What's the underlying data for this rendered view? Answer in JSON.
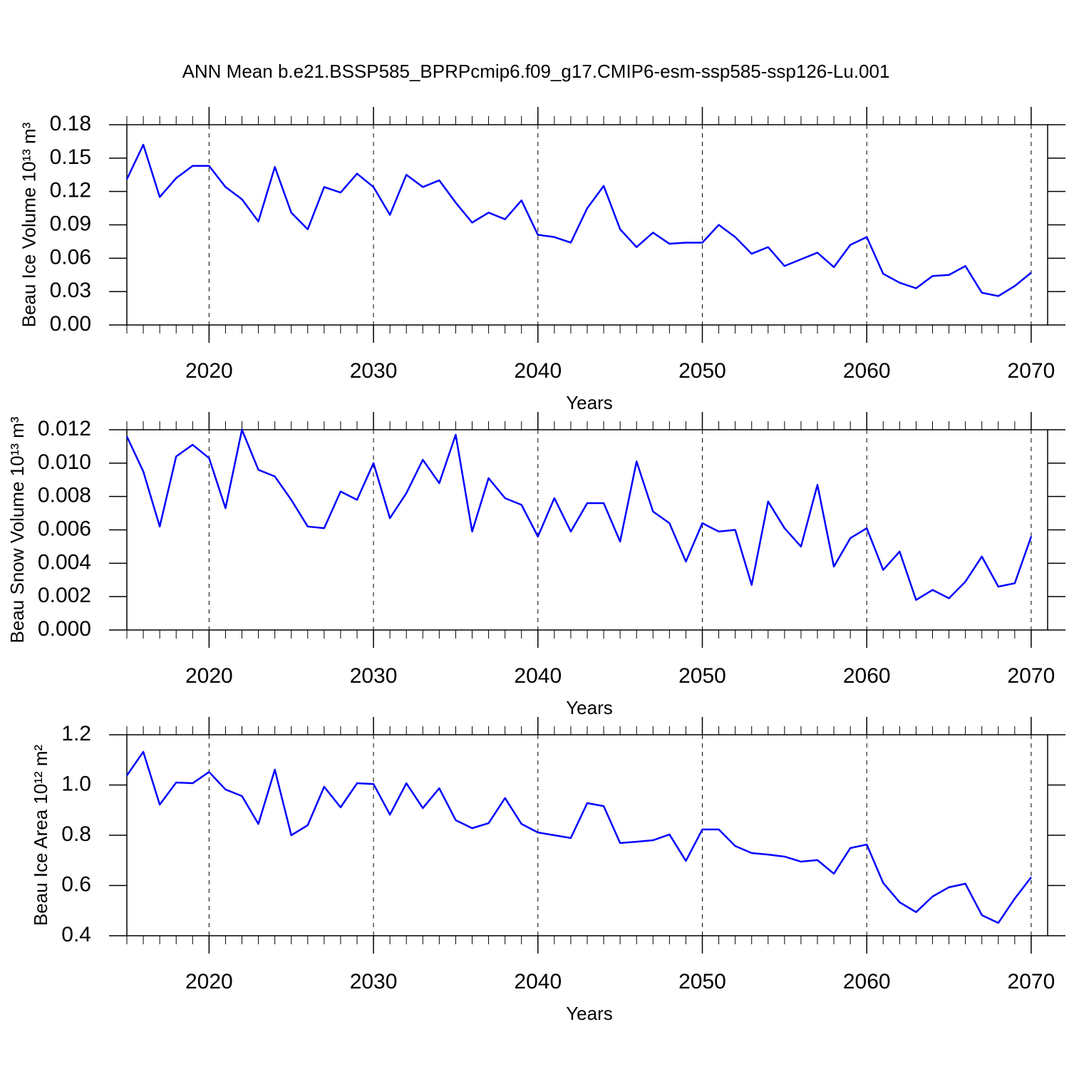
{
  "chart_data": [
    {
      "type": "line",
      "title": "ANN Mean b.e21.BSSP585_BPRPcmip6.f09_g17.CMIP6-esm-ssp585-ssp126-Lu.001",
      "xlabel": "Years",
      "ylabel": "Beau Ice Volume 10¹³ m³",
      "x": [
        2015,
        2016,
        2017,
        2018,
        2019,
        2020,
        2021,
        2022,
        2023,
        2024,
        2025,
        2026,
        2027,
        2028,
        2029,
        2030,
        2031,
        2032,
        2033,
        2034,
        2035,
        2036,
        2037,
        2038,
        2039,
        2040,
        2041,
        2042,
        2043,
        2044,
        2045,
        2046,
        2047,
        2048,
        2049,
        2050,
        2051,
        2052,
        2053,
        2054,
        2055,
        2056,
        2057,
        2058,
        2059,
        2060,
        2061,
        2062,
        2063,
        2064,
        2065,
        2066,
        2067,
        2068,
        2069,
        2070
      ],
      "series": [
        {
          "color": "#0000ff",
          "values": [
            0.131,
            0.162,
            0.115,
            0.132,
            0.143,
            0.143,
            0.124,
            0.113,
            0.093,
            0.142,
            0.101,
            0.086,
            0.124,
            0.119,
            0.136,
            0.124,
            0.099,
            0.135,
            0.124,
            0.13,
            0.11,
            0.092,
            0.101,
            0.095,
            0.112,
            0.081,
            0.079,
            0.074,
            0.105,
            0.125,
            0.086,
            0.07,
            0.083,
            0.073,
            0.074,
            0.074,
            0.09,
            0.079,
            0.064,
            0.07,
            0.053,
            0.059,
            0.065,
            0.052,
            0.072,
            0.079,
            0.046,
            0.038,
            0.033,
            0.044,
            0.045,
            0.053,
            0.029,
            0.026,
            0.035,
            0.047
          ]
        }
      ],
      "xlim": [
        2015,
        2071
      ],
      "xticks": [
        2020,
        2030,
        2040,
        2050,
        2060,
        2070
      ],
      "ylim": [
        0,
        0.18
      ],
      "yticks": [
        {
          "value": 0,
          "label": "0.00"
        },
        0.03,
        0.06,
        0.09,
        0.12,
        0.15,
        0.18
      ],
      "xgrid": true
    },
    {
      "type": "line",
      "xlabel": "Years",
      "ylabel": "Beau Snow Volume 10¹³ m³",
      "x": [
        2015,
        2016,
        2017,
        2018,
        2019,
        2020,
        2021,
        2022,
        2023,
        2024,
        2025,
        2026,
        2027,
        2028,
        2029,
        2030,
        2031,
        2032,
        2033,
        2034,
        2035,
        2036,
        2037,
        2038,
        2039,
        2040,
        2041,
        2042,
        2043,
        2044,
        2045,
        2046,
        2047,
        2048,
        2049,
        2050,
        2051,
        2052,
        2053,
        2054,
        2055,
        2056,
        2057,
        2058,
        2059,
        2060,
        2061,
        2062,
        2063,
        2064,
        2065,
        2066,
        2067,
        2068,
        2069,
        2070
      ],
      "series": [
        {
          "color": "#0000ff",
          "values": [
            0.0116,
            0.0095,
            0.0062,
            0.0104,
            0.0111,
            0.0103,
            0.0073,
            0.012,
            0.0096,
            0.0092,
            0.0078,
            0.0062,
            0.0061,
            0.0083,
            0.0078,
            0.01,
            0.0067,
            0.0082,
            0.0102,
            0.0088,
            0.0117,
            0.0059,
            0.0091,
            0.0079,
            0.0075,
            0.0056,
            0.0079,
            0.0059,
            0.0076,
            0.0076,
            0.0053,
            0.0101,
            0.0071,
            0.0064,
            0.0041,
            0.0064,
            0.0059,
            0.006,
            0.0027,
            0.0077,
            0.0061,
            0.005,
            0.0087,
            0.0038,
            0.0055,
            0.0061,
            0.0036,
            0.0047,
            0.0018,
            0.0024,
            0.0019,
            0.0029,
            0.0044,
            0.0026,
            0.0028,
            0.0056
          ]
        }
      ],
      "xlim": [
        2015,
        2071
      ],
      "xticks": [
        2020,
        2030,
        2040,
        2050,
        2060,
        2070
      ],
      "ylim": [
        0,
        0.012
      ],
      "yticks": [
        {
          "value": 0,
          "label": "0.000"
        },
        {
          "value": 0.002,
          "label": "0.002"
        },
        {
          "value": 0.004,
          "label": "0.004"
        },
        {
          "value": 0.006,
          "label": "0.006"
        },
        {
          "value": 0.008,
          "label": "0.008"
        },
        {
          "value": 0.01,
          "label": "0.010"
        },
        {
          "value": 0.012,
          "label": "0.012"
        }
      ],
      "xgrid": true
    },
    {
      "type": "line",
      "xlabel": "Years",
      "ylabel": "Beau Ice Area 10¹² m²",
      "x": [
        2015,
        2016,
        2017,
        2018,
        2019,
        2020,
        2021,
        2022,
        2023,
        2024,
        2025,
        2026,
        2027,
        2028,
        2029,
        2030,
        2031,
        2032,
        2033,
        2034,
        2035,
        2036,
        2037,
        2038,
        2039,
        2040,
        2041,
        2042,
        2043,
        2044,
        2045,
        2046,
        2047,
        2048,
        2049,
        2050,
        2051,
        2052,
        2053,
        2054,
        2055,
        2056,
        2057,
        2058,
        2059,
        2060,
        2061,
        2062,
        2063,
        2064,
        2065,
        2066,
        2067,
        2068,
        2069,
        2070
      ],
      "series": [
        {
          "color": "#0000ff",
          "values": [
            1.038,
            1.132,
            0.922,
            1.01,
            1.007,
            1.052,
            0.982,
            0.956,
            0.845,
            1.061,
            0.8,
            0.84,
            0.993,
            0.911,
            1.007,
            1.004,
            0.882,
            1.007,
            0.908,
            0.987,
            0.86,
            0.828,
            0.848,
            0.948,
            0.845,
            0.811,
            0.8,
            0.789,
            0.928,
            0.916,
            0.769,
            0.774,
            0.78,
            0.803,
            0.698,
            0.823,
            0.823,
            0.757,
            0.729,
            0.723,
            0.715,
            0.695,
            0.701,
            0.647,
            0.749,
            0.763,
            0.61,
            0.533,
            0.494,
            0.556,
            0.593,
            0.607,
            0.482,
            0.451,
            0.548,
            0.633
          ]
        }
      ],
      "xlim": [
        2015,
        2071
      ],
      "xticks": [
        2020,
        2030,
        2040,
        2050,
        2060,
        2070
      ],
      "ylim": [
        0.4,
        1.2
      ],
      "yticks": [
        0.4,
        0.6,
        0.8,
        {
          "value": 1,
          "label": "1.0"
        },
        1.2
      ],
      "xgrid": true
    }
  ]
}
